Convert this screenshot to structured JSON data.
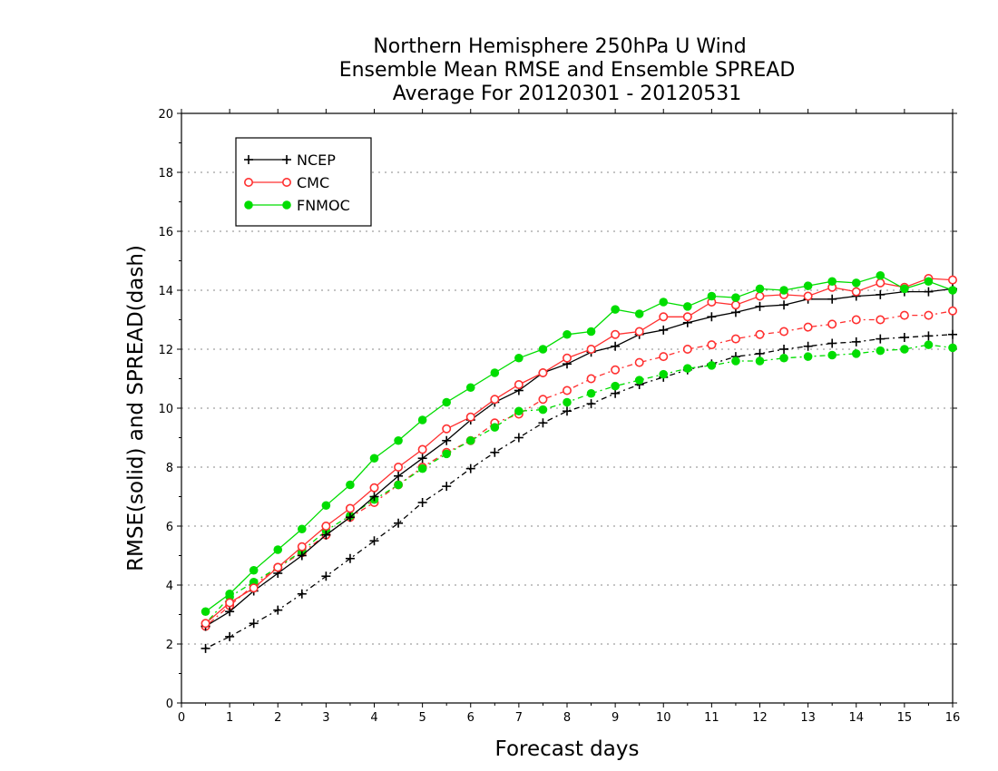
{
  "chart_data": {
    "type": "line",
    "title_lines": [
      "Northern Hemisphere 250hPa U Wind",
      "Ensemble Mean RMSE and Ensemble SPREAD",
      "Average For 20120301 - 20120531"
    ],
    "xlabel": "Forecast days",
    "ylabel": "RMSE(solid) and SPREAD(dash)",
    "xlim": [
      0,
      16
    ],
    "ylim": [
      0,
      20
    ],
    "xticks": [
      0,
      1,
      2,
      3,
      4,
      5,
      6,
      7,
      8,
      9,
      10,
      11,
      12,
      13,
      14,
      15,
      16
    ],
    "yticks": [
      0,
      2,
      4,
      6,
      8,
      10,
      12,
      14,
      16,
      18,
      20
    ],
    "grid": "horizontal dotted",
    "legend_position": "top-left",
    "x": [
      0.5,
      1,
      1.5,
      2,
      2.5,
      3,
      3.5,
      4,
      4.5,
      5,
      5.5,
      6,
      6.5,
      7,
      7.5,
      8,
      8.5,
      9,
      9.5,
      10,
      10.5,
      11,
      11.5,
      12,
      12.5,
      13,
      13.5,
      14,
      14.5,
      15,
      15.5,
      16
    ],
    "series": [
      {
        "name": "NCEP",
        "metric": "RMSE",
        "style": "solid",
        "marker": "plus",
        "color": "#000000",
        "values": [
          2.6,
          3.1,
          3.8,
          4.4,
          5.0,
          5.7,
          6.3,
          7.0,
          7.7,
          8.3,
          8.9,
          9.6,
          10.2,
          10.6,
          11.2,
          11.5,
          11.9,
          12.1,
          12.5,
          12.65,
          12.9,
          13.1,
          13.25,
          13.45,
          13.5,
          13.7,
          13.7,
          13.8,
          13.85,
          13.95,
          13.95,
          14.05
        ]
      },
      {
        "name": "CMC",
        "metric": "RMSE",
        "style": "solid",
        "marker": "open-circle",
        "color": "#ff3030",
        "values": [
          2.7,
          3.4,
          3.9,
          4.6,
          5.3,
          6.0,
          6.6,
          7.3,
          8.0,
          8.6,
          9.3,
          9.7,
          10.3,
          10.8,
          11.2,
          11.7,
          12.0,
          12.5,
          12.6,
          13.1,
          13.1,
          13.6,
          13.5,
          13.8,
          13.85,
          13.8,
          14.1,
          13.95,
          14.25,
          14.1,
          14.4,
          14.35
        ]
      },
      {
        "name": "FNMOC",
        "metric": "RMSE",
        "style": "solid",
        "marker": "filled-circle",
        "color": "#00dd00",
        "values": [
          3.1,
          3.7,
          4.5,
          5.2,
          5.9,
          6.7,
          7.4,
          8.3,
          8.9,
          9.6,
          10.2,
          10.7,
          11.2,
          11.7,
          12.0,
          12.5,
          12.6,
          13.35,
          13.2,
          13.6,
          13.45,
          13.8,
          13.75,
          14.05,
          14.0,
          14.15,
          14.3,
          14.25,
          14.5,
          14.05,
          14.3,
          14.0
        ]
      },
      {
        "name": "NCEP",
        "metric": "SPREAD",
        "style": "dash",
        "marker": "plus",
        "color": "#000000",
        "values": [
          1.85,
          2.25,
          2.7,
          3.15,
          3.7,
          4.3,
          4.9,
          5.5,
          6.1,
          6.8,
          7.35,
          7.95,
          8.5,
          9.0,
          9.5,
          9.9,
          10.15,
          10.5,
          10.8,
          11.05,
          11.3,
          11.5,
          11.75,
          11.85,
          12.0,
          12.1,
          12.2,
          12.25,
          12.35,
          12.4,
          12.45,
          12.5
        ]
      },
      {
        "name": "CMC",
        "metric": "SPREAD",
        "style": "dash",
        "marker": "open-circle",
        "color": "#ff3030",
        "values": [
          2.6,
          3.3,
          4.0,
          4.6,
          5.1,
          5.7,
          6.3,
          6.8,
          7.4,
          8.0,
          8.5,
          8.9,
          9.5,
          9.8,
          10.3,
          10.6,
          11.0,
          11.3,
          11.55,
          11.75,
          12.0,
          12.15,
          12.35,
          12.5,
          12.6,
          12.75,
          12.85,
          13.0,
          13.0,
          13.15,
          13.15,
          13.3
        ]
      },
      {
        "name": "FNMOC",
        "metric": "SPREAD",
        "style": "dash",
        "marker": "filled-circle",
        "color": "#00dd00",
        "values": [
          2.7,
          3.6,
          4.1,
          4.6,
          5.15,
          5.85,
          6.35,
          6.9,
          7.4,
          7.95,
          8.45,
          8.9,
          9.35,
          9.9,
          9.95,
          10.2,
          10.5,
          10.75,
          10.95,
          11.15,
          11.35,
          11.45,
          11.6,
          11.6,
          11.7,
          11.75,
          11.8,
          11.85,
          11.95,
          12.0,
          12.15,
          12.05
        ]
      }
    ]
  },
  "legend": {
    "items": [
      {
        "label": "NCEP",
        "color": "#000000",
        "marker": "plus"
      },
      {
        "label": "CMC",
        "color": "#ff3030",
        "marker": "open-circle"
      },
      {
        "label": "FNMOC",
        "color": "#00dd00",
        "marker": "filled-circle"
      }
    ]
  }
}
